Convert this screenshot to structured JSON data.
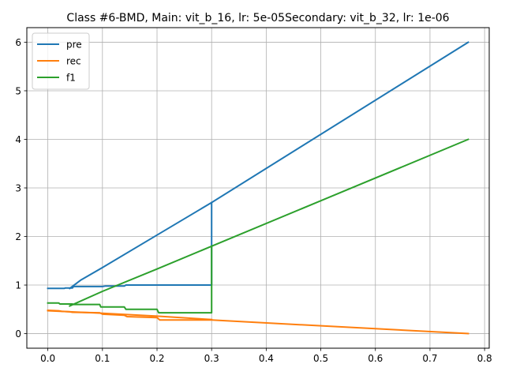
{
  "chart_data": {
    "type": "line",
    "title": "Class #6-BMD, Main: vit_b_16, lr: 5e-05Secondary: vit_b_32, lr: 1e-06",
    "xlabel": "",
    "ylabel": "",
    "xlim": [
      -0.0385,
      0.8085
    ],
    "ylim": [
      -0.3,
      6.3
    ],
    "xticks": [
      0.0,
      0.1,
      0.2,
      0.3,
      0.4,
      0.5,
      0.6,
      0.7,
      0.8
    ],
    "xtick_labels": [
      "0.0",
      "0.1",
      "0.2",
      "0.3",
      "0.4",
      "0.5",
      "0.6",
      "0.7",
      "0.8"
    ],
    "yticks": [
      0,
      1,
      2,
      3,
      4,
      5,
      6
    ],
    "ytick_labels": [
      "0",
      "1",
      "2",
      "3",
      "4",
      "5",
      "6"
    ],
    "grid": true,
    "legend_position": "upper-left",
    "series": [
      {
        "name": "pre",
        "color": "#1f77b4",
        "x": [
          0.0,
          0.03,
          0.032,
          0.045,
          0.047,
          0.1,
          0.105,
          0.14,
          0.143,
          0.2,
          0.3,
          0.3,
          0.77
        ],
        "y": [
          0.93,
          0.93,
          0.94,
          0.94,
          0.97,
          0.97,
          0.98,
          0.98,
          1.0,
          1.0,
          1.0,
          2.7,
          6.0
        ]
      },
      {
        "name": "rec",
        "color": "#ff7f0e",
        "x": [
          0.0,
          0.02,
          0.025,
          0.04,
          0.045,
          0.095,
          0.1,
          0.14,
          0.145,
          0.2,
          0.205,
          0.3,
          0.77
        ],
        "y": [
          0.48,
          0.47,
          0.46,
          0.45,
          0.44,
          0.43,
          0.4,
          0.38,
          0.35,
          0.33,
          0.28,
          0.28,
          0.0
        ]
      },
      {
        "name": "f1",
        "color": "#2ca02c",
        "x": [
          0.0,
          0.02,
          0.022,
          0.045,
          0.047,
          0.095,
          0.097,
          0.14,
          0.143,
          0.2,
          0.203,
          0.3,
          0.3,
          0.77
        ],
        "y": [
          0.63,
          0.63,
          0.61,
          0.61,
          0.6,
          0.6,
          0.55,
          0.55,
          0.5,
          0.5,
          0.43,
          0.43,
          1.8,
          4.0
        ]
      },
      {
        "name": "",
        "color": "#1f77b4",
        "x": [
          0.04,
          0.06,
          0.1,
          0.2,
          0.3
        ],
        "y": [
          0.93,
          1.1,
          1.36,
          2.03,
          2.7
        ]
      },
      {
        "name": "",
        "color": "#2ca02c",
        "x": [
          0.04,
          0.1,
          0.2,
          0.3
        ],
        "y": [
          0.57,
          0.87,
          1.33,
          1.8
        ]
      },
      {
        "name": "",
        "color": "#ff7f0e",
        "x": [
          0.0,
          0.1,
          0.2,
          0.3
        ],
        "y": [
          0.47,
          0.42,
          0.36,
          0.29
        ]
      }
    ]
  }
}
